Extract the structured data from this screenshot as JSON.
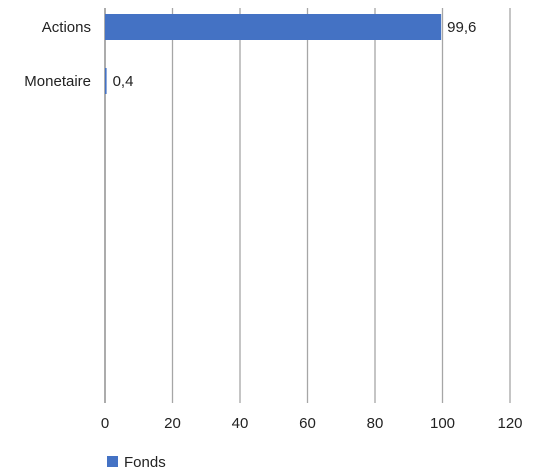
{
  "chart_data": {
    "type": "bar",
    "orientation": "horizontal",
    "categories": [
      "Actions",
      "Monetaire"
    ],
    "series": [
      {
        "name": "Fonds",
        "values": [
          99.6,
          0.4
        ],
        "labels": [
          "99,6",
          "0,4"
        ]
      }
    ],
    "xlim": [
      0,
      120
    ],
    "xticks": [
      0,
      20,
      40,
      60,
      80,
      100,
      120
    ],
    "xtick_labels": [
      "0",
      "20",
      "40",
      "60",
      "80",
      "100",
      "120"
    ],
    "grid": "vertical",
    "legend_position": "bottom-left",
    "colors": {
      "bar": "#4472c4",
      "grid": "#a6a6a6",
      "axis": "#7f7f7f"
    }
  }
}
